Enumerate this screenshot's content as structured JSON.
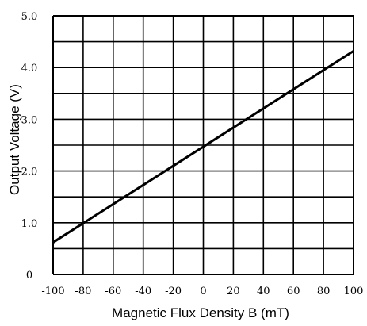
{
  "chart_data": {
    "type": "line",
    "title": "",
    "xlabel": "Magnetic Flux Density B (mT)",
    "ylabel": "Output Voltage (V)",
    "xlim": [
      -100,
      100
    ],
    "ylim": [
      0,
      5.0
    ],
    "x_ticks": [
      "-100",
      "-80",
      "-60",
      "-40",
      "-20",
      "0",
      "20",
      "40",
      "60",
      "80",
      "100"
    ],
    "y_ticks": [
      "0",
      "1.0",
      "2.0",
      "3.0",
      "4.0",
      "5.0"
    ],
    "grid": true,
    "series": [
      {
        "x": [
          -100,
          100
        ],
        "y": [
          0.62,
          4.32
        ]
      }
    ]
  }
}
